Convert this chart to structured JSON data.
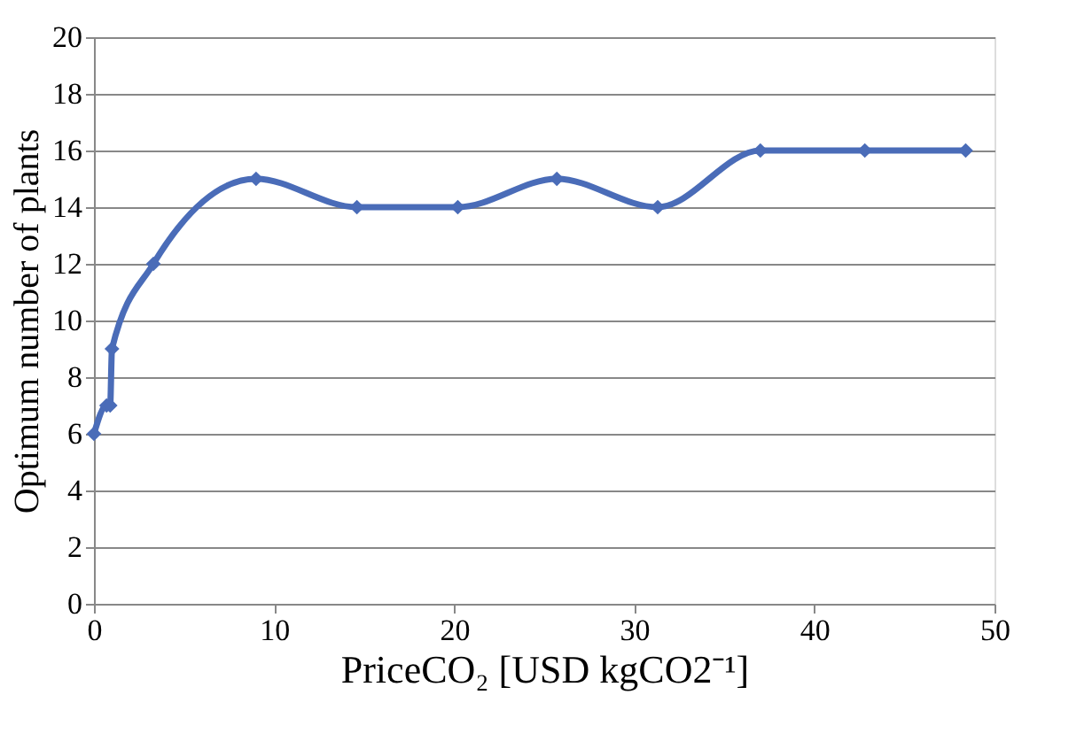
{
  "chart_data": {
    "type": "line",
    "xlabel": "PriceCO₂ [USD kgCO2⁻¹]",
    "ylabel": "Optimum number of plants",
    "x": [
      0,
      0.7,
      0.9,
      1.0,
      3.3,
      9,
      14.6,
      20.2,
      25.7,
      31.3,
      37,
      42.8,
      48.4
    ],
    "series": [
      {
        "color": "#4a6cb8",
        "values": [
          6,
          7,
          7,
          9,
          12,
          15,
          14,
          14,
          15,
          14,
          16,
          16,
          16
        ]
      }
    ],
    "xlim": [
      0,
      50
    ],
    "xticks": [
      0,
      10,
      20,
      30,
      40,
      50
    ],
    "ylim": [
      0,
      20
    ],
    "yticks": [
      0,
      2,
      4,
      6,
      8,
      10,
      12,
      14,
      16,
      18,
      20
    ],
    "grid": "y",
    "marker": "diamond",
    "line_style": "solid"
  }
}
